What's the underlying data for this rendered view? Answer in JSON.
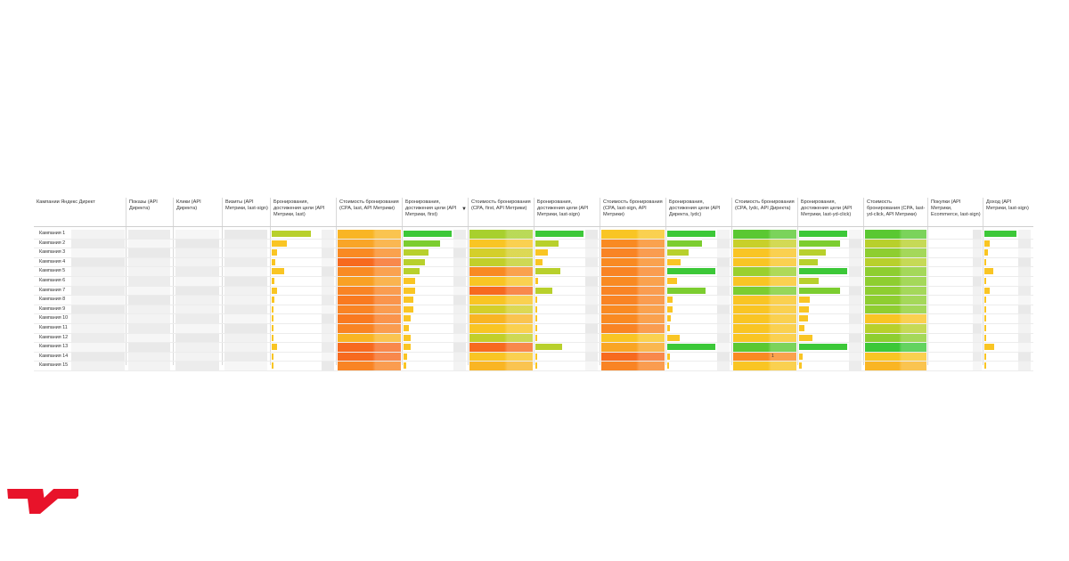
{
  "table": {
    "columns": [
      {
        "label": "Кампании Яндекс Директ"
      },
      {
        "label": "Показы (API Директа)"
      },
      {
        "label": "Клики (API Директа)"
      },
      {
        "label": "Визиты (API Метрики, last-sign)"
      },
      {
        "label": "Бронирования, достижения цели (API Метрики, last)"
      },
      {
        "label": "Стоимость бронирования (CPA, last, API Метрики)"
      },
      {
        "label": "Бронирования, достижения цели (API Метрики, first)",
        "sorted": true
      },
      {
        "label": "Стоимость бронирования (CPA, first, API Метрики)"
      },
      {
        "label": "Бронирования, достижения цели (API Метрики, last-sign)"
      },
      {
        "label": "Стоимость бронирования (CPA, last-sign, API Метрики)"
      },
      {
        "label": "Бронирования, достижения цели (API Директа, lydc)"
      },
      {
        "label": "Стоимость бронирования (CPA, lydc, API Директа)"
      },
      {
        "label": "Бронирования, достижения цели (API Метрики, last-yd-click)"
      },
      {
        "label": "Стоимость бронирования (CPA, last-yd-click, API Метрики)"
      },
      {
        "label": "Покупки (API Метрики, Ecommerce, last-sign)"
      },
      {
        "label": "Доход (API Метрики, last-sign)"
      }
    ],
    "sort_arrow": "▼",
    "rows": [
      {
        "name": "Кампания 1"
      },
      {
        "name": "Кампания 2"
      },
      {
        "name": "Кампания 3"
      },
      {
        "name": "Кампания 4"
      },
      {
        "name": "Кампания 5"
      },
      {
        "name": "Кампания 6"
      },
      {
        "name": "Кампания 7"
      },
      {
        "name": "Кампания 8"
      },
      {
        "name": "Кампания 9"
      },
      {
        "name": "Кампания 10"
      },
      {
        "name": "Кампания 11"
      },
      {
        "name": "Кампания 12"
      },
      {
        "name": "Кампания 13"
      },
      {
        "name": "Кампания 14"
      },
      {
        "name": "Кампания 15"
      }
    ],
    "bar_columns": {
      "last": [
        0.82,
        0.32,
        0.12,
        0.08,
        0.25,
        0.05,
        0.12,
        0.05,
        0.04,
        0.04,
        0.03,
        0.03,
        0.12,
        0.02,
        0.02
      ],
      "first": [
        1.0,
        0.75,
        0.52,
        0.45,
        0.33,
        0.24,
        0.24,
        0.2,
        0.2,
        0.14,
        0.12,
        0.14,
        0.14,
        0.08,
        0.06
      ],
      "last_sign": [
        1.0,
        0.48,
        0.26,
        0.14,
        0.52,
        0.05,
        0.36,
        0.04,
        0.04,
        0.04,
        0.03,
        0.03,
        0.55,
        0.02,
        0.02
      ],
      "lydc": [
        1.0,
        0.72,
        0.45,
        0.28,
        1.0,
        0.2,
        0.8,
        0.12,
        0.12,
        0.08,
        0.06,
        0.25,
        1.0,
        0.05,
        0.04
      ],
      "last_yd_click": [
        1.0,
        0.85,
        0.55,
        0.38,
        1.0,
        0.4,
        0.85,
        0.22,
        0.2,
        0.18,
        0.12,
        0.28,
        1.0,
        0.08,
        0.06
      ],
      "income": [
        1.0,
        0.16,
        0.12,
        0.06,
        0.28,
        0.06,
        0.18,
        0.04,
        0.04,
        0.04,
        0.03,
        0.03,
        0.3,
        0.02,
        0.02
      ]
    },
    "cpa_colors": {
      "cpa_last": [
        "#f9b524",
        "#f9a526",
        "#f98a22",
        "#f76a1f",
        "#f98b24",
        "#f9a124",
        "#f98424",
        "#f97a20",
        "#f98424",
        "#f97a20",
        "#f98424",
        "#f9b524",
        "#f76a1f",
        "#f76a1f",
        "#f98424"
      ],
      "cpa_first": [
        "#a8d02e",
        "#f9c524",
        "#d4cf2a",
        "#c2cf2a",
        "#f98a22",
        "#f9c524",
        "#f76a1f",
        "#f9c524",
        "#d4cf2a",
        "#f9b524",
        "#f9c524",
        "#c2cf2a",
        "#f76a1f",
        "#f9c524",
        "#f9b524"
      ],
      "cpa_last_sign": [
        "#f9c524",
        "#f98a22",
        "#f98424",
        "#f98a22",
        "#f98424",
        "#f98a22",
        "#f98424",
        "#f98424",
        "#f98a22",
        "#f98a22",
        "#f98424",
        "#f9c524",
        "#f9a524",
        "#f76a1f",
        "#f98424"
      ],
      "cpa_lydc": [
        "#5ac832",
        "#c8d02a",
        "#f9c524",
        "#f9c524",
        "#9ad02e",
        "#f9c524",
        "#7ccd30",
        "#f9c524",
        "#f9c524",
        "#f9c524",
        "#f9c524",
        "#f9c524",
        "#5ac832",
        "#f98a22",
        "#f9c524"
      ],
      "cpa_last_yd_click": [
        "#5ac832",
        "#b8d02c",
        "#8ece30",
        "#b8d02c",
        "#8ece30",
        "#8ece30",
        "#8ece30",
        "#8ece30",
        "#8ece30",
        "#f9c524",
        "#b8d02c",
        "#8ece30",
        "#3cc838",
        "#f9c524",
        "#f9b524"
      ]
    },
    "cpa_lydc_value_row14": "1"
  }
}
